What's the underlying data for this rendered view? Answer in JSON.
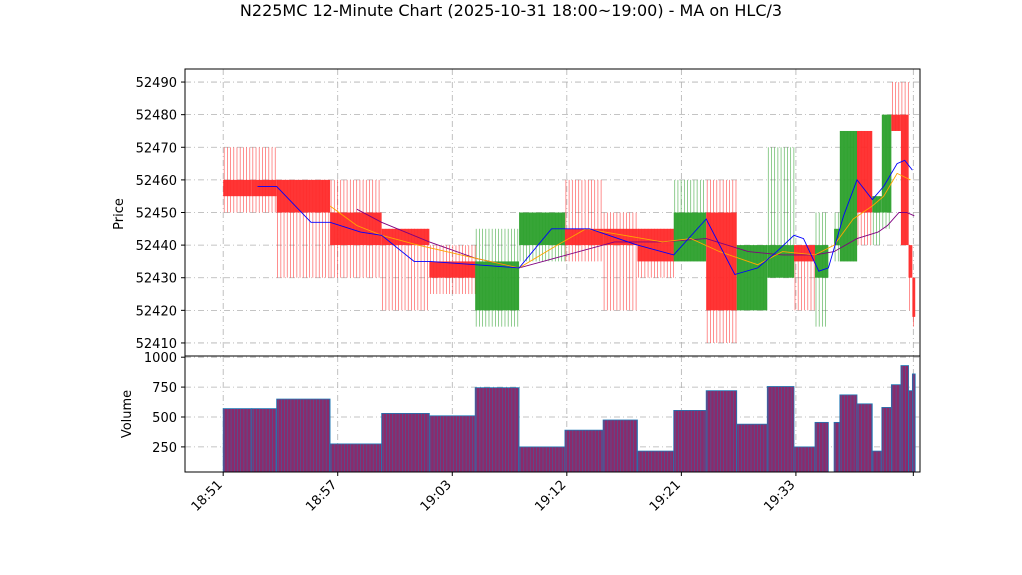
{
  "chart_data": {
    "type": "candlestick-renko-volume",
    "title": "N225MC 12-Minute Chart (2025-10-31 18:00~19:00) - MA on HLC/3",
    "price_panel": {
      "ylabel": "Price",
      "ylim": [
        52406,
        52494
      ],
      "yticks": [
        52410,
        52420,
        52430,
        52440,
        52450,
        52460,
        52470,
        52480,
        52490
      ],
      "grid": true
    },
    "volume_panel": {
      "ylabel": "Volume",
      "ylim": [
        40,
        1010
      ],
      "yticks": [
        250,
        500,
        750,
        1000
      ],
      "grid": true
    },
    "x_ticks": [
      "18:51",
      "18:57",
      "19:03",
      "19:12",
      "19:21",
      "19:33"
    ],
    "x_tick_positions": [
      0,
      6,
      12,
      18,
      24,
      30
    ],
    "x_range": [
      -2,
      36.5
    ],
    "colors": {
      "up": "#2ca02c",
      "down": "#ff2a2a",
      "ma_fast": "#0000ff",
      "ma_mid": "#ffa500",
      "ma_slow": "#800080",
      "volume": "#8b2a6b",
      "volume_edge": "#1f77b4"
    },
    "bars": [
      {
        "x0": 0.0,
        "x1": 1.5,
        "open": 52460,
        "close": 52455,
        "high": 52470,
        "low": 52450,
        "volume": 570
      },
      {
        "x0": 1.5,
        "x1": 2.8,
        "open": 52460,
        "close": 52455,
        "high": 52470,
        "low": 52450,
        "volume": 570
      },
      {
        "x0": 2.8,
        "x1": 5.6,
        "open": 52460,
        "close": 52450,
        "high": 52460,
        "low": 52430,
        "volume": 650
      },
      {
        "x0": 5.6,
        "x1": 8.3,
        "open": 52450,
        "close": 52440,
        "high": 52460,
        "low": 52430,
        "volume": 275
      },
      {
        "x0": 8.3,
        "x1": 10.8,
        "open": 52445,
        "close": 52440,
        "high": 52445,
        "low": 52420,
        "volume": 530
      },
      {
        "x0": 10.8,
        "x1": 13.2,
        "open": 52435,
        "close": 52430,
        "high": 52440,
        "low": 52425,
        "volume": 510
      },
      {
        "x0": 13.2,
        "x1": 15.5,
        "open": 52420,
        "close": 52435,
        "high": 52445,
        "low": 52415,
        "volume": 745
      },
      {
        "x0": 15.5,
        "x1": 17.9,
        "open": 52440,
        "close": 52450,
        "high": 52450,
        "low": 52435,
        "volume": 250
      },
      {
        "x0": 17.9,
        "x1": 19.9,
        "open": 52445,
        "close": 52440,
        "high": 52460,
        "low": 52435,
        "volume": 390
      },
      {
        "x0": 19.9,
        "x1": 21.7,
        "open": 52445,
        "close": 52440,
        "high": 52450,
        "low": 52420,
        "volume": 475
      },
      {
        "x0": 21.7,
        "x1": 23.6,
        "open": 52445,
        "close": 52435,
        "high": 52445,
        "low": 52430,
        "volume": 215
      },
      {
        "x0": 23.6,
        "x1": 25.3,
        "open": 52435,
        "close": 52450,
        "high": 52460,
        "low": 52435,
        "volume": 555
      },
      {
        "x0": 25.3,
        "x1": 26.9,
        "open": 52450,
        "close": 52420,
        "high": 52460,
        "low": 52410,
        "volume": 720
      },
      {
        "x0": 26.9,
        "x1": 28.5,
        "open": 52420,
        "close": 52440,
        "high": 52440,
        "low": 52420,
        "volume": 440
      },
      {
        "x0": 28.5,
        "x1": 29.9,
        "open": 52430,
        "close": 52440,
        "high": 52470,
        "low": 52430,
        "volume": 755
      },
      {
        "x0": 29.9,
        "x1": 31.0,
        "open": 52440,
        "close": 52435,
        "high": 52440,
        "low": 52420,
        "volume": 250
      },
      {
        "x0": 31.0,
        "x1": 31.7,
        "open": 52430,
        "close": 52440,
        "high": 52450,
        "low": 52415,
        "volume": 455
      },
      {
        "x0": 32.0,
        "x1": 32.3,
        "open": 52440,
        "close": 52445,
        "high": 52450,
        "low": 52435,
        "volume": 455
      },
      {
        "x0": 32.3,
        "x1": 33.2,
        "open": 52435,
        "close": 52475,
        "high": 52475,
        "low": 52435,
        "volume": 685
      },
      {
        "x0": 33.2,
        "x1": 34.0,
        "open": 52475,
        "close": 52450,
        "high": 52475,
        "low": 52440,
        "volume": 610
      },
      {
        "x0": 34.0,
        "x1": 34.5,
        "open": 52450,
        "close": 52455,
        "high": 52455,
        "low": 52440,
        "volume": 215
      },
      {
        "x0": 34.5,
        "x1": 35.0,
        "open": 52450,
        "close": 52480,
        "high": 52480,
        "low": 52445,
        "volume": 580
      },
      {
        "x0": 35.0,
        "x1": 35.5,
        "open": 52480,
        "close": 52475,
        "high": 52490,
        "low": 52475,
        "volume": 770
      },
      {
        "x0": 35.5,
        "x1": 35.9,
        "open": 52480,
        "close": 52440,
        "high": 52490,
        "low": 52440,
        "volume": 930
      },
      {
        "x0": 35.9,
        "x1": 36.1,
        "open": 52440,
        "close": 52430,
        "high": 52440,
        "low": 52420,
        "volume": 720
      },
      {
        "x0": 36.1,
        "x1": 36.25,
        "open": 52430,
        "close": 52418,
        "high": 52430,
        "low": 52415,
        "volume": 860
      }
    ],
    "ma_fast": [
      [
        1.8,
        52458
      ],
      [
        2.8,
        52458
      ],
      [
        4.6,
        52447
      ],
      [
        5.6,
        52447
      ],
      [
        7.2,
        52444
      ],
      [
        8.3,
        52443
      ],
      [
        10.0,
        52435
      ],
      [
        10.8,
        52435
      ],
      [
        13.2,
        52434
      ],
      [
        15.5,
        52433
      ],
      [
        17.2,
        52445
      ],
      [
        19.2,
        52445
      ],
      [
        21.7,
        52440
      ],
      [
        23.6,
        52437
      ],
      [
        25.3,
        52448
      ],
      [
        26.8,
        52431
      ],
      [
        28.0,
        52433
      ],
      [
        29.0,
        52438
      ],
      [
        29.9,
        52443
      ],
      [
        30.4,
        52442
      ],
      [
        31.2,
        52432
      ],
      [
        31.7,
        52433
      ],
      [
        32.5,
        52449
      ],
      [
        33.2,
        52460
      ],
      [
        34.0,
        52454
      ],
      [
        34.6,
        52458
      ],
      [
        35.3,
        52465
      ],
      [
        35.7,
        52466
      ],
      [
        36.1,
        52463
      ]
    ],
    "ma_mid": [
      [
        5.6,
        52452
      ],
      [
        7.0,
        52446
      ],
      [
        8.3,
        52443
      ],
      [
        10.2,
        52440
      ],
      [
        13.2,
        52436
      ],
      [
        15.5,
        52433
      ],
      [
        17.5,
        52440
      ],
      [
        19.0,
        52445
      ],
      [
        21.0,
        52443
      ],
      [
        23.0,
        52441
      ],
      [
        24.5,
        52442
      ],
      [
        26.0,
        52438
      ],
      [
        28.0,
        52434
      ],
      [
        29.3,
        52438
      ],
      [
        31.0,
        52437
      ],
      [
        32.0,
        52440
      ],
      [
        33.0,
        52448
      ],
      [
        34.0,
        52452
      ],
      [
        34.6,
        52455
      ],
      [
        35.3,
        52462
      ],
      [
        36.0,
        52460
      ]
    ],
    "ma_slow": [
      [
        7.0,
        52451
      ],
      [
        8.3,
        52447
      ],
      [
        10.8,
        52441
      ],
      [
        13.2,
        52436
      ],
      [
        15.5,
        52433
      ],
      [
        18.0,
        52437
      ],
      [
        20.5,
        52441
      ],
      [
        23.0,
        52441
      ],
      [
        25.3,
        52442
      ],
      [
        27.5,
        52438
      ],
      [
        29.3,
        52437
      ],
      [
        31.0,
        52437
      ],
      [
        32.0,
        52438
      ],
      [
        33.2,
        52442
      ],
      [
        34.3,
        52444
      ],
      [
        34.8,
        52446
      ],
      [
        35.4,
        52450
      ],
      [
        35.8,
        52450
      ],
      [
        36.2,
        52449
      ]
    ]
  }
}
